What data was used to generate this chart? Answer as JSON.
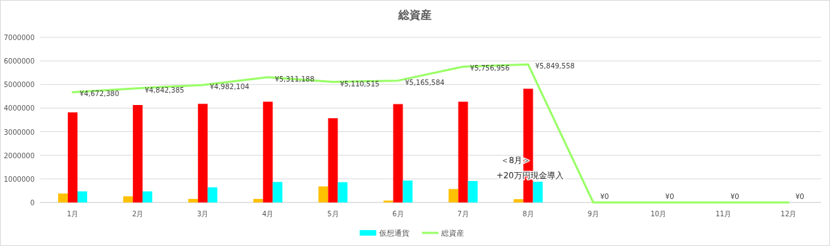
{
  "chart_data": {
    "type": "bar",
    "title": "総資産",
    "categories": [
      "1月",
      "2月",
      "3月",
      "4月",
      "5月",
      "6月",
      "7月",
      "8月",
      "9月",
      "10月",
      "11月",
      "12月"
    ],
    "series": [
      {
        "color": "#ffc000",
        "values": [
          380000,
          260000,
          150000,
          150000,
          680000,
          80000,
          570000,
          140000,
          null,
          null,
          null,
          null
        ]
      },
      {
        "color": "#ff0000",
        "values": [
          3820000,
          4130000,
          4180000,
          4270000,
          3570000,
          4170000,
          4270000,
          4820000,
          null,
          null,
          null,
          null
        ]
      },
      {
        "name": "仮想通貨",
        "color": "#00ffff",
        "values": [
          470000,
          470000,
          640000,
          870000,
          860000,
          930000,
          910000,
          880000,
          null,
          null,
          null,
          null
        ]
      },
      {
        "type": "line",
        "name": "総資産",
        "color": "#99ff66",
        "values": [
          4672380,
          4842385,
          4982104,
          5311188,
          5110515,
          5165584,
          5756956,
          5849558,
          0,
          0,
          0,
          0
        ],
        "value_labels": [
          "¥4,672,380",
          "¥4,842,385",
          "¥4,982,104",
          "¥5,311,188",
          "¥5,110,515",
          "¥5,165,584",
          "¥5,756,956",
          "¥5,849,558",
          "¥0",
          "¥0",
          "¥0",
          "¥0"
        ]
      }
    ],
    "ylim": [
      0,
      7000000
    ],
    "yticks": [
      0,
      1000000,
      2000000,
      3000000,
      4000000,
      5000000,
      6000000,
      7000000
    ],
    "grid": "y",
    "legend": "bottom",
    "annotations": [
      "＜8月＞",
      "+20万円現金導入"
    ]
  }
}
